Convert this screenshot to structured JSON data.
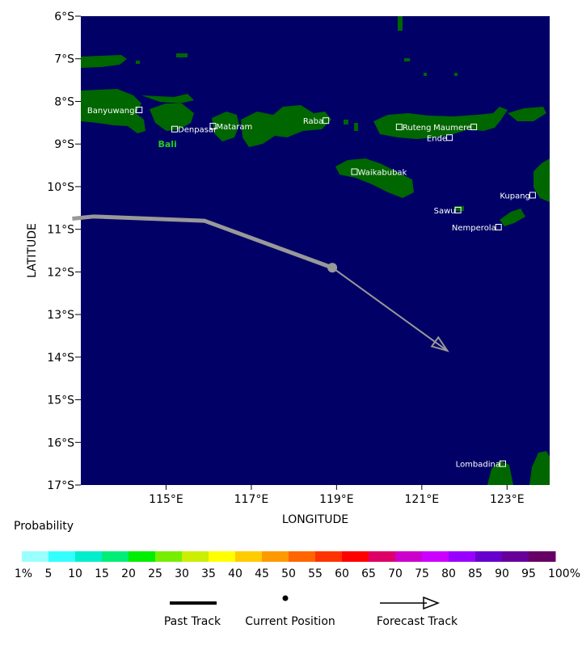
{
  "map": {
    "ocean_color": "#000066",
    "land_color": "#006600",
    "xlabel": "LONGITUDE",
    "ylabel": "LATITUDE",
    "lon_ticks": [
      "115°E",
      "117°E",
      "119°E",
      "121°E",
      "123°E"
    ],
    "lat_ticks": [
      "6°S",
      "7°S",
      "8°S",
      "9°S",
      "10°S",
      "11°S",
      "12°S",
      "13°S",
      "14°S",
      "15°S",
      "16°S",
      "17°S"
    ],
    "places": [
      {
        "name": "Banyuwangi",
        "lon": 114.37,
        "lat": -8.2
      },
      {
        "name": "Denpasar",
        "lon": 115.2,
        "lat": -8.65
      },
      {
        "name": "Mataram",
        "lon": 116.1,
        "lat": -8.58
      },
      {
        "name": "Raba",
        "lon": 118.75,
        "lat": -8.45
      },
      {
        "name": "Ruteng",
        "lon": 120.47,
        "lat": -8.6
      },
      {
        "name": "Maumere",
        "lon": 122.22,
        "lat": -8.6
      },
      {
        "name": "Ende",
        "lon": 121.65,
        "lat": -8.85
      },
      {
        "name": "Waikabubak",
        "lon": 119.42,
        "lat": -9.65
      },
      {
        "name": "Kupang",
        "lon": 123.6,
        "lat": -10.2
      },
      {
        "name": "Sawu",
        "lon": 121.85,
        "lat": -10.55
      },
      {
        "name": "Nemperola",
        "lon": 122.8,
        "lat": -10.95
      },
      {
        "name": "Lombadina",
        "lon": 122.9,
        "lat": -16.5
      }
    ],
    "region_label": {
      "name": "Bali",
      "lon": 115.0,
      "lat": -9.0
    }
  },
  "storm": {
    "track_color": "#999999",
    "past_track": [
      [
        112.8,
        -10.75
      ],
      [
        113.3,
        -10.7
      ],
      [
        115.9,
        -10.8
      ],
      [
        118.9,
        -11.9
      ]
    ],
    "current_position": [
      118.9,
      -11.9
    ],
    "forecast_track": [
      [
        118.9,
        -11.9
      ],
      [
        121.6,
        -13.85
      ]
    ]
  },
  "legend": {
    "title": "Probability",
    "colors": [
      "#99ffff",
      "#33ffff",
      "#00eecc",
      "#00ee77",
      "#00ee00",
      "#77ee00",
      "#ccee00",
      "#ffff00",
      "#ffcc00",
      "#ff9900",
      "#ff6600",
      "#ff3300",
      "#ff0000",
      "#dd0066",
      "#cc00cc",
      "#cc00ff",
      "#9900ff",
      "#6600cc",
      "#660099",
      "#660066"
    ],
    "labels": [
      "1%",
      "5",
      "10",
      "15",
      "20",
      "25",
      "30",
      "35",
      "40",
      "45",
      "50",
      "55",
      "60",
      "65",
      "70",
      "75",
      "80",
      "85",
      "90",
      "95",
      "100%"
    ],
    "past_track_label": "Past Track",
    "current_position_label": "Current Position",
    "forecast_track_label": "Forecast Track"
  }
}
